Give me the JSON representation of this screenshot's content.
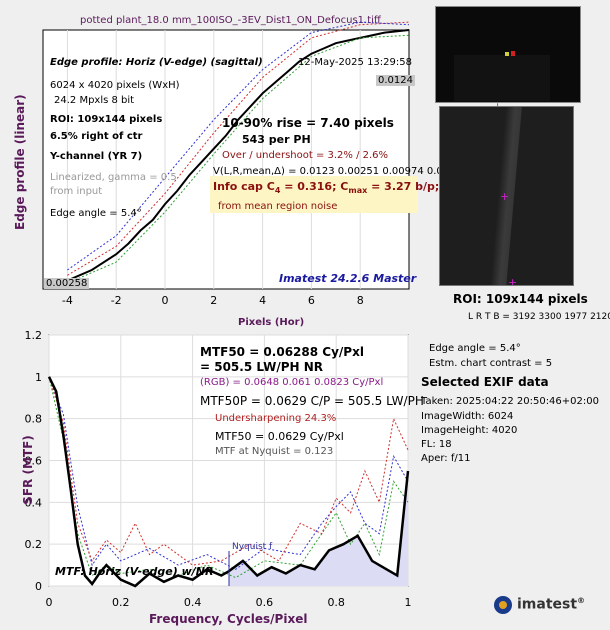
{
  "title": "potted plant_18.0 mm_100ISO_-3EV_Dist1_ON_Defocus1.tiff",
  "edge_panel": {
    "profile_label": "Edge profile: Horiz (V-edge) (sagittal)",
    "date": "12-May-2025 13:29:58",
    "size_line": "6024 x 4020 pixels (WxH)",
    "mpx_line": "24.2 Mpxls   8 bit",
    "roi_line": "ROI:  109x144 pixels",
    "offset_line": "6.5% right of ctr",
    "channel_line": "Y-channel  (YR 7)",
    "linearized_1": "Linearized, gamma = 0.5",
    "linearized_2": "from input",
    "edge_angle": "Edge angle = 5.4°",
    "rise": "10-90% rise = 7.40 pixels",
    "per_ph": "543 per PH",
    "overshoot": "Over / undershoot =  3.2% /  2.6%",
    "vlr": "V(L,R,mean,Δ) = 0.0123   0.00251   0.00974   0.0",
    "info_cap": "Info cap C",
    "info_cap_sub": "4",
    "info_cap_val": " = 0.316;  C",
    "info_cap_sub2": "max",
    "info_cap_val2": " = 3.27 b/p;",
    "noise_note": "from mean region noise",
    "master": "Imatest 24.2.6 Master",
    "top_value": "0.0124",
    "bottom_value": "0.00258",
    "y_label": "Edge profile (linear)",
    "x_label": "Pixels (Hor)"
  },
  "roi_panel": {
    "roi_size": "ROI:  109x144 pixels",
    "lrtb": "L R  T B = 3192 3300   1977 2120"
  },
  "mtf_panel": {
    "mtf50": "MTF50 = 0.06288 Cy/Pxl",
    "lwph": "= 505.5 LW/PH  NR",
    "rgb": "(RGB) = 0.0648  0.061  0.0823 Cy/Pxl",
    "mtf50p": "MTF50P = 0.0629 C/P = 505.5 LW/PH",
    "undersharp": "Undersharpening 24.3%",
    "mtf50_2": "MTF50 = 0.0629 Cy/Pxl",
    "nyq": "MTF at Nyquist = 0.123",
    "nyquist_label": "Nyquist f",
    "legend": "MTF: Horiz (V-edge) w/NR",
    "y_label": "SFR (MTF)",
    "x_label": "Frequency, Cycles/Pixel"
  },
  "exif": {
    "edge_angle": "Edge angle = 5.4°",
    "contrast": "Estm. chart contrast = 5",
    "heading": "Selected EXIF data",
    "taken": "Taken: 2025:04:22 20:50:46+02:00",
    "width": "ImageWidth:  6024",
    "height": "ImageHeight:  4020",
    "fl": "FL:    18",
    "aper": "Aper:  f/11"
  },
  "logo": "imatest",
  "colors": {
    "accent": "#5a1a5a",
    "link": "#1a1aa0",
    "info_bg": "#fdf6c4",
    "mtf_fill": "#dcdcf5"
  },
  "chart_data": [
    {
      "type": "line",
      "name": "edge profile",
      "xlabel": "Pixels (Hor)",
      "ylabel": "Edge profile (linear)",
      "xlim": [
        -5,
        10
      ],
      "ylim": [
        0.00258,
        0.0124
      ],
      "xticks": [
        -4,
        -2,
        0,
        2,
        4,
        6,
        8
      ],
      "grid": true,
      "series": [
        {
          "color": "#000000",
          "x": [
            -4,
            -3,
            -2,
            -1.5,
            -1,
            -0.5,
            0,
            0.5,
            1,
            1.5,
            2,
            2.5,
            3,
            3.5,
            4,
            4.5,
            5,
            5.5,
            6,
            6.5,
            7,
            7.5,
            8,
            9,
            10
          ],
          "y": [
            0.0029,
            0.0033,
            0.0039,
            0.0043,
            0.0048,
            0.0052,
            0.0058,
            0.0063,
            0.0069,
            0.0074,
            0.0079,
            0.0084,
            0.009,
            0.0095,
            0.01,
            0.0104,
            0.0108,
            0.0112,
            0.0115,
            0.0117,
            0.0119,
            0.012,
            0.0121,
            0.0123,
            0.0124
          ]
        },
        {
          "color": "#d03030",
          "x": [
            -4,
            -2,
            0,
            2,
            4,
            6,
            8,
            10
          ],
          "y": [
            0.0031,
            0.0042,
            0.0062,
            0.0085,
            0.0106,
            0.0121,
            0.0126,
            0.0127
          ]
        },
        {
          "color": "#30a030",
          "x": [
            -4,
            -2,
            0,
            2,
            4,
            6,
            8,
            10
          ],
          "y": [
            0.0028,
            0.0036,
            0.0055,
            0.0077,
            0.0098,
            0.0114,
            0.0121,
            0.0122
          ]
        },
        {
          "color": "#3030d0",
          "x": [
            -4,
            -2,
            0,
            2,
            4,
            6,
            8,
            10
          ],
          "y": [
            0.0033,
            0.0046,
            0.0068,
            0.009,
            0.0109,
            0.0123,
            0.0127,
            0.0126
          ]
        }
      ]
    },
    {
      "type": "line",
      "name": "SFR",
      "xlabel": "Frequency, Cycles/Pixel",
      "ylabel": "SFR (MTF)",
      "xlim": [
        0,
        1
      ],
      "ylim": [
        0,
        1.2
      ],
      "xticks": [
        0,
        0.2,
        0.4,
        0.6,
        0.8,
        1
      ],
      "yticks": [
        0,
        0.2,
        0.4,
        0.6,
        0.8,
        1,
        1.2
      ],
      "grid": true,
      "series": [
        {
          "color": "#000000",
          "x": [
            0,
            0.02,
            0.04,
            0.06,
            0.08,
            0.1,
            0.12,
            0.14,
            0.16,
            0.2,
            0.24,
            0.28,
            0.32,
            0.36,
            0.4,
            0.44,
            0.48,
            0.5,
            0.54,
            0.58,
            0.62,
            0.66,
            0.7,
            0.74,
            0.78,
            0.82,
            0.86,
            0.9,
            0.94,
            0.97,
            1.0
          ],
          "y": [
            1.0,
            0.93,
            0.72,
            0.47,
            0.2,
            0.05,
            0.01,
            0.06,
            0.1,
            0.03,
            0.0,
            0.06,
            0.02,
            0.05,
            0.03,
            0.08,
            0.05,
            0.07,
            0.12,
            0.05,
            0.09,
            0.06,
            0.1,
            0.08,
            0.17,
            0.2,
            0.24,
            0.12,
            0.08,
            0.05,
            0.55
          ]
        },
        {
          "color": "#d03030",
          "x": [
            0,
            0.04,
            0.08,
            0.12,
            0.16,
            0.2,
            0.24,
            0.28,
            0.32,
            0.4,
            0.48,
            0.56,
            0.64,
            0.7,
            0.76,
            0.8,
            0.84,
            0.88,
            0.92,
            0.96,
            1.0
          ],
          "y": [
            1.0,
            0.78,
            0.3,
            0.12,
            0.22,
            0.16,
            0.3,
            0.15,
            0.2,
            0.1,
            0.12,
            0.2,
            0.12,
            0.3,
            0.25,
            0.42,
            0.35,
            0.55,
            0.4,
            0.8,
            0.65
          ]
        },
        {
          "color": "#30a030",
          "x": [
            0,
            0.04,
            0.08,
            0.12,
            0.16,
            0.2,
            0.28,
            0.36,
            0.44,
            0.52,
            0.6,
            0.7,
            0.76,
            0.8,
            0.84,
            0.88,
            0.92,
            0.96,
            1.0
          ],
          "y": [
            1.0,
            0.7,
            0.25,
            0.05,
            0.1,
            0.06,
            0.08,
            0.05,
            0.1,
            0.04,
            0.12,
            0.1,
            0.25,
            0.35,
            0.2,
            0.3,
            0.15,
            0.5,
            0.4
          ]
        },
        {
          "color": "#3030d0",
          "x": [
            0,
            0.04,
            0.08,
            0.12,
            0.16,
            0.2,
            0.28,
            0.36,
            0.44,
            0.52,
            0.6,
            0.7,
            0.76,
            0.8,
            0.84,
            0.88,
            0.92,
            0.96,
            1.0
          ],
          "y": [
            1.0,
            0.82,
            0.38,
            0.1,
            0.2,
            0.12,
            0.18,
            0.1,
            0.15,
            0.08,
            0.18,
            0.15,
            0.3,
            0.38,
            0.45,
            0.3,
            0.25,
            0.62,
            0.5
          ]
        }
      ]
    }
  ]
}
